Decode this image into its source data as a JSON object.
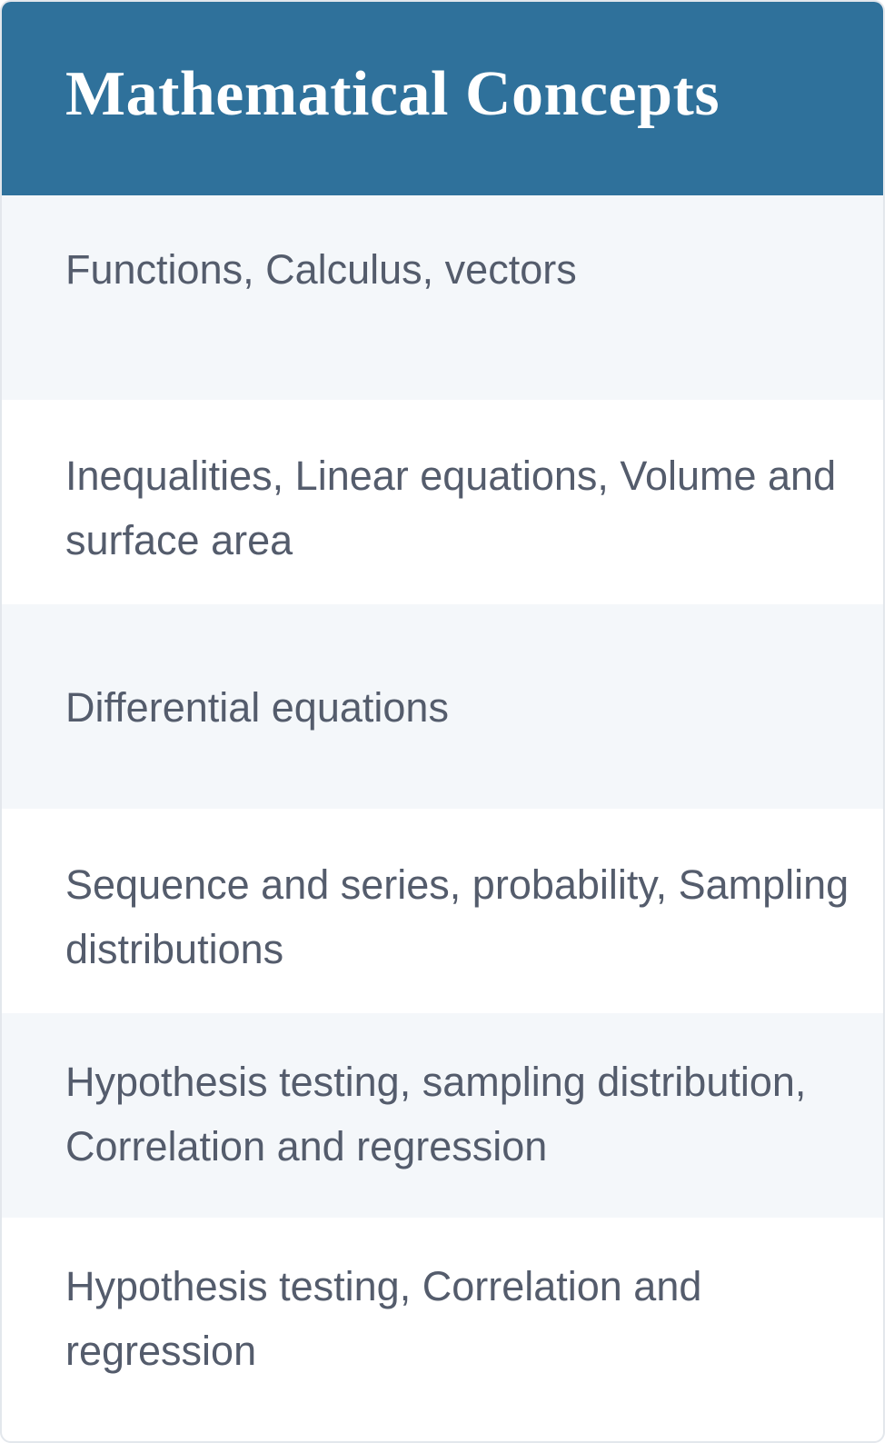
{
  "table": {
    "header": "Mathematical Concepts",
    "rows": [
      "Functions, Calculus, vectors",
      "Inequalities, Linear equations, Volume and surface area",
      "Differential equations",
      "Sequence and series, probability, Sampling distributions",
      "Hypothesis testing, sampling distribution, Correlation and regression",
      "Hypothesis testing, Correlation and regression"
    ]
  },
  "colors": {
    "header_background": "#2f719b",
    "header_text": "#ffffff",
    "row_text": "#545c6c",
    "row_alt_background": "#f4f7fa"
  }
}
